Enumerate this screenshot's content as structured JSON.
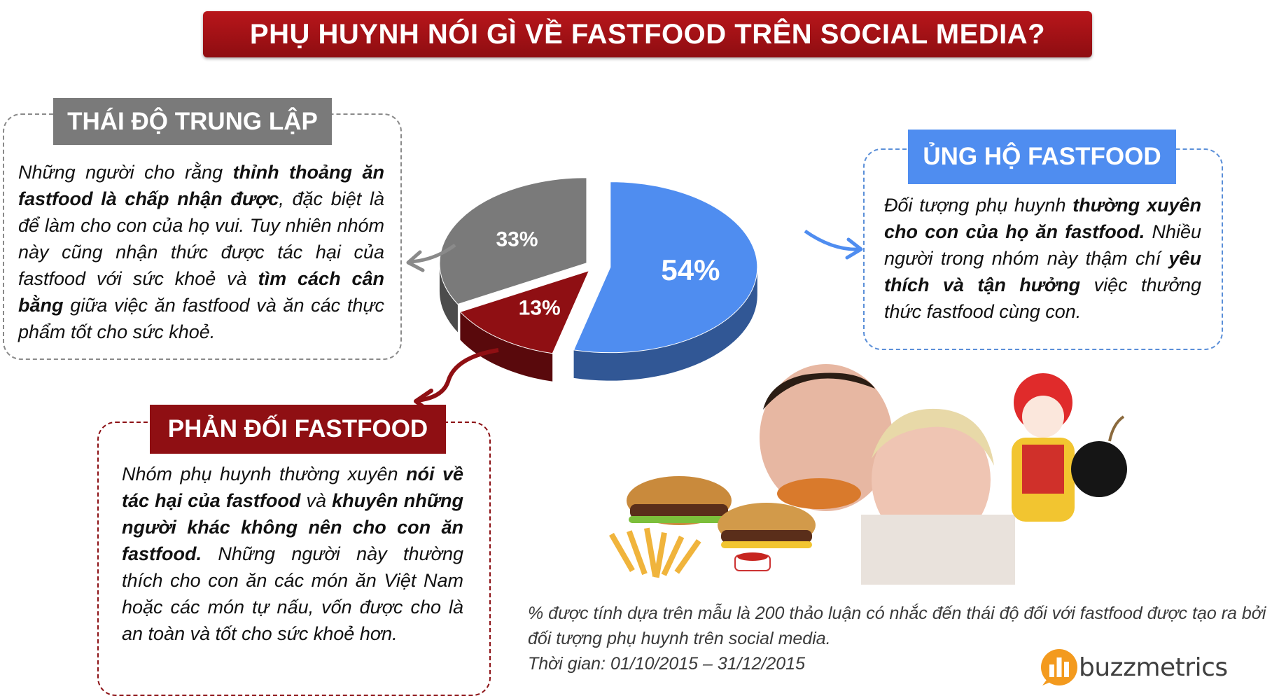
{
  "title": "PHỤ HUYNH NÓI GÌ VỀ FASTFOOD TRÊN SOCIAL MEDIA?",
  "colors": {
    "title_bg": "#a51217",
    "support": "#4f8df0",
    "neutral": "#7a7a7a",
    "oppose": "#8f0f13"
  },
  "chart_data": {
    "type": "pie",
    "style": "3d-exploded",
    "slices": [
      {
        "name": "ỦNG HỘ FASTFOOD",
        "value": 54,
        "label": "54%",
        "color": "#4f8df0"
      },
      {
        "name": "PHẢN ĐỐI FASTFOOD",
        "value": 13,
        "label": "13%",
        "color": "#8f0f13"
      },
      {
        "name": "THÁI ĐỘ TRUNG LẬP",
        "value": 33,
        "label": "33%",
        "color": "#7a7a7a"
      }
    ]
  },
  "neutral": {
    "heading": "THÁI ĐỘ TRUNG LẬP",
    "t1": "Những người cho rằng ",
    "b1": "thỉnh thoảng ăn fastfood là chấp nhận được",
    "t2": ", đặc biệt là để làm cho con của họ vui. Tuy nhiên nhóm này cũng nhận thức được tác hại của fastfood với sức khoẻ và ",
    "b2": "tìm cách cân bằng",
    "t3": " giữa việc ăn fastfood và ăn các thực phẩm tốt cho sức khoẻ."
  },
  "support": {
    "heading": "ỦNG HỘ FASTFOOD",
    "t1": "Đối tượng phụ huynh ",
    "b1": "thường xuyên cho con của họ ăn fastfood.",
    "t2": " Nhiều người trong nhóm này thậm chí ",
    "b2": "yêu thích và tận hưởng",
    "t3": " việc thưởng thức fastfood cùng con."
  },
  "oppose": {
    "heading": "PHẢN ĐỐI FASTFOOD",
    "t1": "Nhóm phụ huynh thường xuyên ",
    "b1": "nói về tác hại của fastfood",
    "t2": " và ",
    "b2": "khuyên những người khác không nên cho con ăn fastfood.",
    "t3": " Những người này thường thích cho con ăn các món ăn Việt Nam hoặc các món tự nấu, vốn được cho là an toàn và tốt cho sức khoẻ hơn."
  },
  "footnote": {
    "line1": "% được tính dựa trên mẫu là 200 thảo luận có nhắc đến thái độ đối với fastfood được tạo ra bởi đối tượng phụ huynh trên social media.",
    "line2": "Thời gian: 01/10/2015 – 31/12/2015"
  },
  "logo": {
    "text": "buzzmetrics",
    "icon": "bar-chart-bubble-icon"
  },
  "illustration": {
    "icon": "fastfood-family-photo"
  }
}
